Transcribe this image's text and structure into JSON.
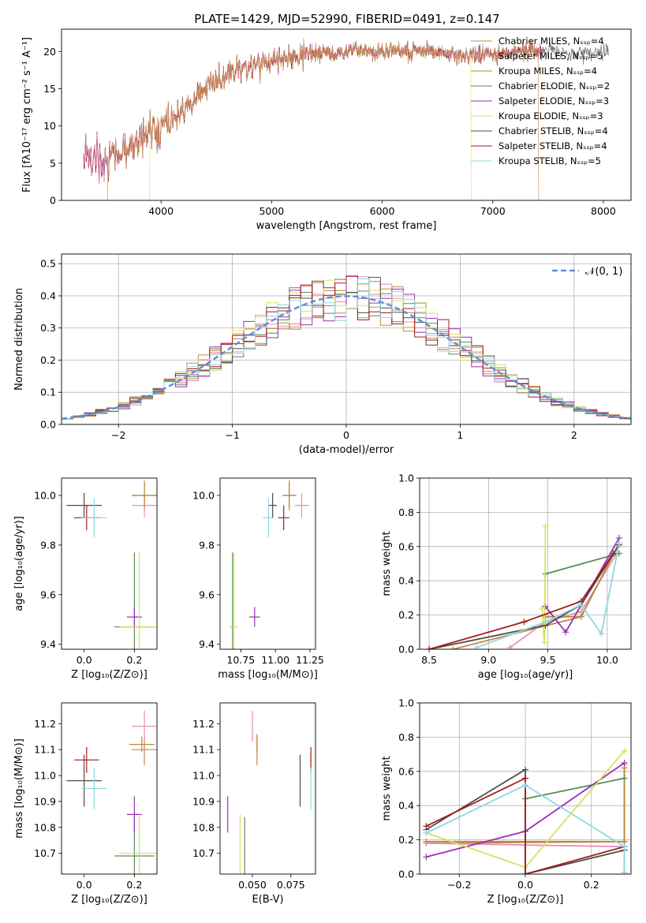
{
  "title": "PLATE=1429, MJD=52990, FIBERID=0491, z=0.147",
  "colors": [
    "#c7874a",
    "#e88fb8",
    "#b8893a",
    "#5d8a5d",
    "#9b2fb5",
    "#d6e25f",
    "#4d4d4d",
    "#a51d1d",
    "#8fd8e0"
  ],
  "chart_data": [
    {
      "id": "spectrum",
      "type": "line",
      "title": "PLATE=1429, MJD=52990, FIBERID=0491, z=0.147",
      "xlabel": "wavelength [Angstrom, rest frame]",
      "ylabel": "Flux [fλ10⁻¹⁷ erg cm⁻² s⁻¹ A⁻¹]",
      "xlim": [
        3100,
        8250
      ],
      "ylim": [
        0,
        23
      ],
      "xticks": [
        4000,
        5000,
        6000,
        7000,
        8000
      ],
      "yticks": [
        0,
        5,
        10,
        15,
        20
      ],
      "grid": false,
      "legend_position": "right",
      "legend": [
        "Chabrier MILES, Nₛₛₚ=4",
        "Salpeter MILES, Nₛₛₚ=5",
        "Kroupa MILES, Nₛₛₚ=4",
        "Chabrier ELODIE, Nₛₛₚ=2",
        "Salpeter ELODIE, Nₛₛₚ=3",
        "Kroupa ELODIE, Nₛₛₚ=3",
        "Chabrier STELIB, Nₛₛₚ=4",
        "Salpeter STELIB, Nₛₛₚ=4",
        "Kroupa STELIB, Nₛₛₚ=5"
      ],
      "continuum": {
        "x": [
          3300,
          3500,
          3700,
          3900,
          4100,
          4300,
          4500,
          4700,
          4900,
          5100,
          5300,
          5500,
          5700,
          5900,
          6100,
          6300,
          6500,
          6700,
          6900,
          7100,
          7300,
          7500,
          7700,
          7900,
          8100
        ],
        "y": [
          5.5,
          5.3,
          7.0,
          9.0,
          11.0,
          13.5,
          16.0,
          17.5,
          18.5,
          19.0,
          19.5,
          19.8,
          20.0,
          20.0,
          20.2,
          20.0,
          19.8,
          19.6,
          19.6,
          19.8,
          20.2,
          20.0,
          19.8,
          19.8,
          20.0
        ]
      },
      "model_cutoffs": [
        {
          "start": 3520,
          "end": 7410
        },
        {
          "start": 3900,
          "end": 6800
        }
      ]
    },
    {
      "id": "residuals",
      "type": "histogram",
      "xlabel": "(data-model)/error",
      "ylabel": "Normed distribution",
      "xlim": [
        -2.5,
        2.5
      ],
      "ylim": [
        0,
        0.53
      ],
      "xticks": [
        -2,
        -1,
        0,
        1,
        2
      ],
      "yticks": [
        0.0,
        0.1,
        0.2,
        0.3,
        0.4,
        0.5
      ],
      "grid": true,
      "legend_position": "top-right",
      "normal_curve_label": "𝒩(0, 1)",
      "bin_width": 0.1
    },
    {
      "id": "age_vs_Z",
      "type": "errorbar",
      "xlabel": "Z [log₁₀(Z/Z⊙)]",
      "ylabel": "age  [log₁₀(age/yr)]",
      "xlim": [
        -0.09,
        0.29
      ],
      "ylim": [
        9.38,
        10.07
      ],
      "xticks": [
        0.0,
        0.2
      ],
      "yticks": [
        9.4,
        9.6,
        9.8,
        10.0
      ],
      "points": [
        {
          "x": 0.24,
          "y": 10.0,
          "xerr": 0.05,
          "yerr": 0.06,
          "c": 0
        },
        {
          "x": 0.24,
          "y": 9.96,
          "xerr": 0.05,
          "yerr": 0.05,
          "c": 1
        },
        {
          "x": 0.24,
          "y": 10.0,
          "xerr": 0.05,
          "yerr": 0.05,
          "c": 2
        },
        {
          "x": 0.2,
          "y": 9.47,
          "xerr": 0.08,
          "yerr": 0.3,
          "c": 3
        },
        {
          "x": 0.2,
          "y": 9.51,
          "xerr": 0.03,
          "yerr": 0.04,
          "c": 4
        },
        {
          "x": 0.22,
          "y": 9.47,
          "xerr": 0.08,
          "yerr": 0.3,
          "c": 5
        },
        {
          "x": 0.0,
          "y": 9.96,
          "xerr": 0.07,
          "yerr": 0.05,
          "c": 6
        },
        {
          "x": 0.01,
          "y": 9.91,
          "xerr": 0.05,
          "yerr": 0.05,
          "c": 7
        },
        {
          "x": 0.04,
          "y": 9.91,
          "xerr": 0.05,
          "yerr": 0.08,
          "c": 8
        }
      ]
    },
    {
      "id": "age_vs_mass",
      "type": "errorbar",
      "xlabel": "mass [log₁₀(M/M⊙)]",
      "ylabel": "",
      "xlim": [
        10.6,
        11.29
      ],
      "ylim": [
        9.38,
        10.07
      ],
      "xticks": [
        10.75,
        11.0,
        11.25
      ],
      "yticks": [
        9.4,
        9.6,
        9.8,
        10.0
      ],
      "points": [
        {
          "x": 11.1,
          "y": 10.0,
          "xerr": 0.05,
          "yerr": 0.06,
          "c": 0
        },
        {
          "x": 11.19,
          "y": 9.96,
          "xerr": 0.05,
          "yerr": 0.05,
          "c": 1
        },
        {
          "x": 11.1,
          "y": 10.0,
          "xerr": 0.05,
          "yerr": 0.05,
          "c": 2
        },
        {
          "x": 10.69,
          "y": 9.47,
          "xerr": 0.02,
          "yerr": 0.3,
          "c": 3
        },
        {
          "x": 10.85,
          "y": 9.51,
          "xerr": 0.04,
          "yerr": 0.04,
          "c": 4
        },
        {
          "x": 10.7,
          "y": 9.47,
          "xerr": 0.03,
          "yerr": 0.3,
          "c": 5
        },
        {
          "x": 10.98,
          "y": 9.96,
          "xerr": 0.03,
          "yerr": 0.05,
          "c": 6
        },
        {
          "x": 11.06,
          "y": 9.91,
          "xerr": 0.04,
          "yerr": 0.05,
          "c": 7
        },
        {
          "x": 10.95,
          "y": 9.91,
          "xerr": 0.04,
          "yerr": 0.08,
          "c": 8
        }
      ]
    },
    {
      "id": "weight_vs_age",
      "type": "line",
      "xlabel": "age  [log₁₀(age/yr)]",
      "ylabel": "mass weight",
      "xlim": [
        8.42,
        10.2
      ],
      "ylim": [
        0,
        1
      ],
      "xticks": [
        8.5,
        9.0,
        9.5,
        10.0
      ],
      "yticks": [
        0.0,
        0.2,
        0.4,
        0.6,
        0.8,
        1.0
      ],
      "grid": true,
      "series": [
        {
          "c": 0,
          "x": [
            8.7,
            9.78,
            10.1
          ],
          "y": [
            0.0,
            0.19,
            0.62
          ]
        },
        {
          "c": 1,
          "x": [
            9.18,
            9.48,
            9.78,
            10.08
          ],
          "y": [
            0.01,
            0.16,
            0.22,
            0.56
          ]
        },
        {
          "c": 2,
          "x": [
            9.48,
            9.78,
            10.1
          ],
          "y": [
            0.19,
            0.19,
            0.62
          ]
        },
        {
          "c": 3,
          "x": [
            9.48,
            10.1
          ],
          "y": [
            0.44,
            0.56
          ]
        },
        {
          "c": 4,
          "x": [
            9.48,
            9.65,
            10.1
          ],
          "y": [
            0.25,
            0.1,
            0.65
          ]
        },
        {
          "c": 5,
          "x": [
            9.45,
            9.47,
            9.48
          ],
          "y": [
            0.24,
            0.04,
            0.72
          ]
        },
        {
          "c": 6,
          "x": [
            8.5,
            9.48,
            9.78,
            10.1
          ],
          "y": [
            0.0,
            0.14,
            0.26,
            0.61
          ]
        },
        {
          "c": 7,
          "x": [
            8.5,
            9.3,
            9.78,
            10.05
          ],
          "y": [
            0.0,
            0.16,
            0.28,
            0.56
          ]
        },
        {
          "c": 8,
          "x": [
            8.9,
            9.48,
            9.78,
            9.95,
            10.1
          ],
          "y": [
            0.01,
            0.16,
            0.26,
            0.09,
            0.62
          ]
        }
      ]
    },
    {
      "id": "mass_vs_Z",
      "type": "errorbar",
      "xlabel": "Z [log₁₀(Z/Z⊙)]",
      "ylabel": "mass [log₁₀(M/M⊙)]",
      "xlim": [
        -0.09,
        0.29
      ],
      "ylim": [
        10.62,
        11.28
      ],
      "xticks": [
        0.0,
        0.2
      ],
      "yticks": [
        10.7,
        10.8,
        10.9,
        11.0,
        11.1,
        11.2
      ],
      "points": [
        {
          "x": 0.24,
          "y": 11.1,
          "xerr": 0.05,
          "yerr": 0.06,
          "c": 0
        },
        {
          "x": 0.24,
          "y": 11.19,
          "xerr": 0.05,
          "yerr": 0.06,
          "c": 1
        },
        {
          "x": 0.23,
          "y": 11.12,
          "xerr": 0.05,
          "yerr": 0.03,
          "c": 2
        },
        {
          "x": 0.2,
          "y": 10.69,
          "xerr": 0.08,
          "yerr": 0.15,
          "c": 3
        },
        {
          "x": 0.2,
          "y": 10.85,
          "xerr": 0.03,
          "yerr": 0.07,
          "c": 4
        },
        {
          "x": 0.22,
          "y": 10.7,
          "xerr": 0.08,
          "yerr": 0.15,
          "c": 5
        },
        {
          "x": 0.0,
          "y": 10.98,
          "xerr": 0.07,
          "yerr": 0.1,
          "c": 6
        },
        {
          "x": 0.01,
          "y": 11.06,
          "xerr": 0.05,
          "yerr": 0.05,
          "c": 7
        },
        {
          "x": 0.04,
          "y": 10.95,
          "xerr": 0.05,
          "yerr": 0.08,
          "c": 8
        }
      ]
    },
    {
      "id": "mass_vs_ebv",
      "type": "errorbar",
      "xlabel": "E(B-V)",
      "ylabel": "",
      "xlim": [
        0.029,
        0.091
      ],
      "ylim": [
        10.62,
        11.28
      ],
      "xticks": [
        0.05,
        0.075
      ],
      "yticks": [
        10.7,
        10.8,
        10.9,
        11.0,
        11.1,
        11.2
      ],
      "points": [
        {
          "x": 0.053,
          "y": 11.1,
          "yerr": 0.06,
          "c": 0
        },
        {
          "x": 0.05,
          "y": 11.19,
          "yerr": 0.06,
          "c": 1
        },
        {
          "x": 0.053,
          "y": 11.12,
          "yerr": 0.03,
          "c": 2
        },
        {
          "x": 0.045,
          "y": 10.69,
          "yerr": 0.15,
          "c": 3
        },
        {
          "x": 0.034,
          "y": 10.85,
          "yerr": 0.07,
          "c": 4
        },
        {
          "x": 0.042,
          "y": 10.7,
          "yerr": 0.15,
          "c": 5
        },
        {
          "x": 0.081,
          "y": 10.98,
          "yerr": 0.1,
          "c": 6
        },
        {
          "x": 0.088,
          "y": 11.06,
          "yerr": 0.05,
          "c": 7
        },
        {
          "x": 0.088,
          "y": 10.95,
          "yerr": 0.08,
          "c": 8
        }
      ]
    },
    {
      "id": "weight_vs_Z",
      "type": "line",
      "xlabel": "Z [log₁₀(Z/Z⊙)]",
      "ylabel": "mass weight",
      "xlim": [
        -0.32,
        0.32
      ],
      "ylim": [
        0,
        1
      ],
      "xticks": [
        -0.2,
        0.0,
        0.2
      ],
      "yticks": [
        0.0,
        0.2,
        0.4,
        0.6,
        0.8,
        1.0
      ],
      "grid": true,
      "series": [
        {
          "c": 0,
          "x": [
            -0.3,
            0.3,
            0.3,
            0.3
          ],
          "y": [
            0.18,
            0.19,
            0.62,
            0.01
          ]
        },
        {
          "c": 1,
          "x": [
            -0.3,
            0.3,
            0.3
          ],
          "y": [
            0.18,
            0.16,
            0.64
          ]
        },
        {
          "c": 2,
          "x": [
            -0.3,
            0.3,
            0.3
          ],
          "y": [
            0.19,
            0.19,
            0.62
          ]
        },
        {
          "c": 3,
          "x": [
            0.0,
            0.3
          ],
          "y": [
            0.44,
            0.56
          ]
        },
        {
          "c": 4,
          "x": [
            -0.3,
            0.0,
            0.3
          ],
          "y": [
            0.1,
            0.25,
            0.65
          ]
        },
        {
          "c": 5,
          "x": [
            -0.3,
            0.0,
            0.3
          ],
          "y": [
            0.24,
            0.04,
            0.72
          ]
        },
        {
          "c": 6,
          "x": [
            -0.3,
            0.0,
            0.0,
            0.3
          ],
          "y": [
            0.26,
            0.61,
            0.0,
            0.14
          ]
        },
        {
          "c": 7,
          "x": [
            -0.3,
            0.0,
            0.0,
            0.3
          ],
          "y": [
            0.28,
            0.56,
            0.0,
            0.16
          ]
        },
        {
          "c": 8,
          "x": [
            -0.3,
            0.0,
            0.3,
            0.3
          ],
          "y": [
            0.24,
            0.52,
            0.16,
            0.01
          ]
        }
      ]
    }
  ]
}
